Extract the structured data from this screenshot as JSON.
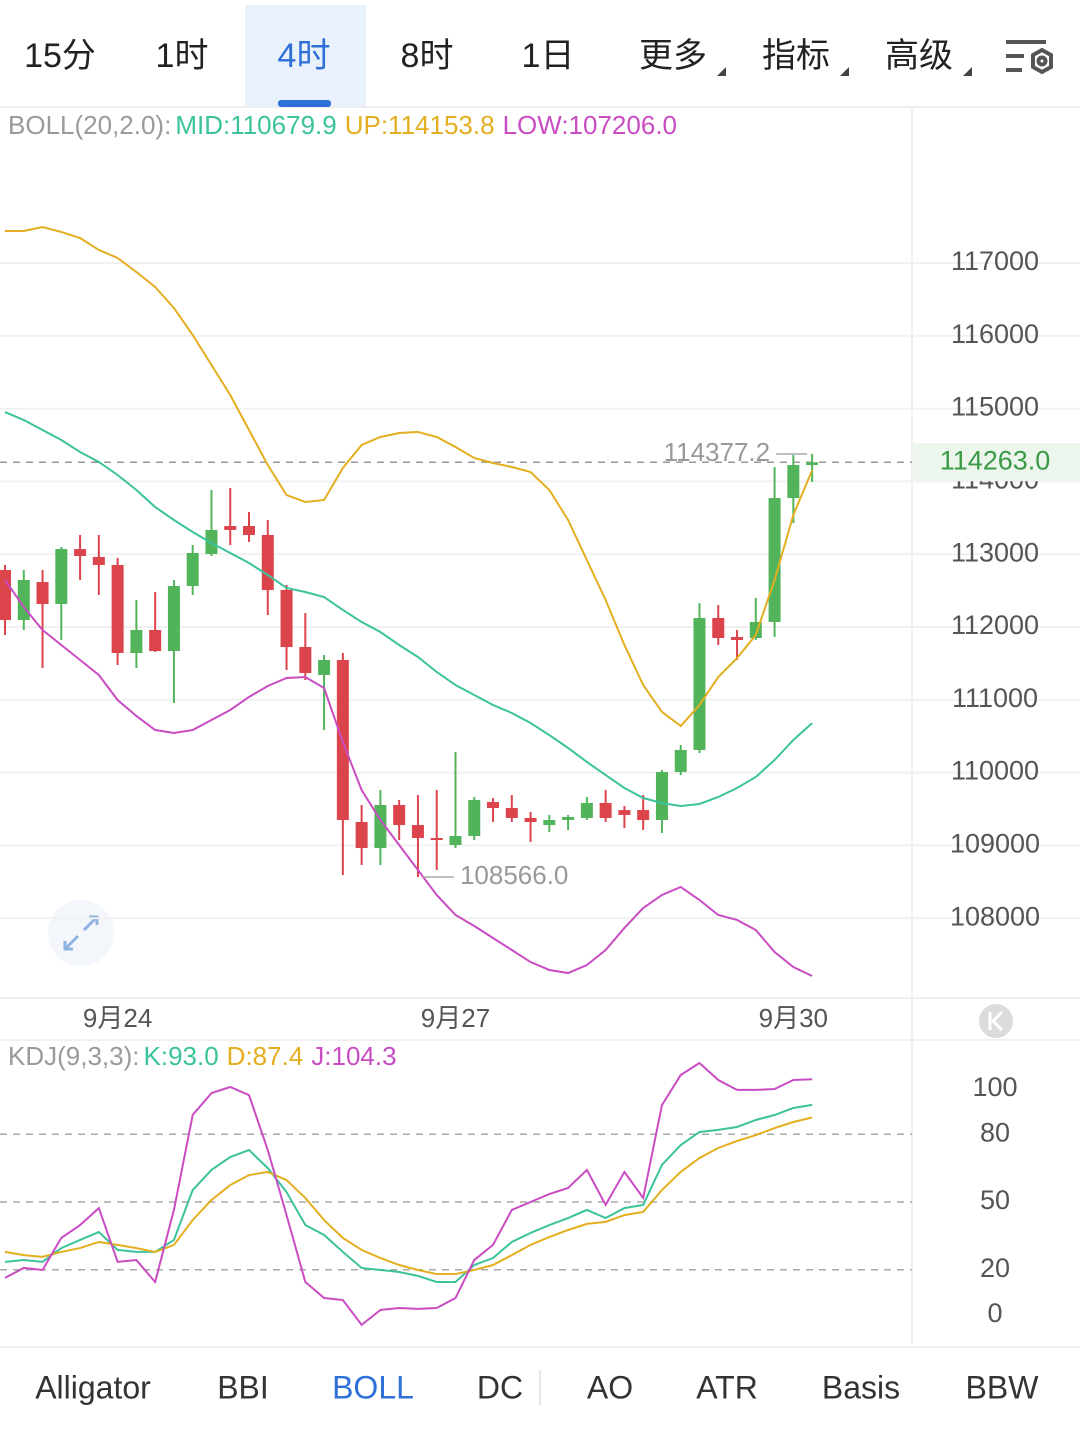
{
  "tabs": {
    "periods": [
      "15分",
      "1时",
      "4时",
      "8时",
      "1日"
    ],
    "menus": [
      "更多",
      "指标",
      "高级"
    ],
    "active": "4时"
  },
  "chart_data": [
    {
      "type": "candlestick",
      "legend_title": "BOLL(20,2.0):",
      "categories": [
        null,
        null,
        null,
        null,
        null,
        null,
        "9月24",
        null,
        null,
        null,
        null,
        null,
        null,
        null,
        null,
        null,
        null,
        null,
        null,
        null,
        null,
        null,
        null,
        null,
        "9月27",
        null,
        null,
        null,
        null,
        null,
        null,
        null,
        null,
        null,
        null,
        null,
        null,
        null,
        null,
        null,
        null,
        null,
        "9月30",
        null
      ],
      "open": [
        112783,
        112096,
        112618,
        112316,
        113071,
        112962,
        112852,
        111643,
        111959,
        111670,
        112563,
        113003,
        113387,
        113387,
        113264,
        112508,
        111725,
        111341,
        111547,
        109322,
        108964,
        109555,
        109280,
        109102,
        109006,
        109129,
        109596,
        109514,
        109377,
        109280,
        109349,
        109377,
        109583,
        109486,
        109486,
        109349,
        110008,
        110311,
        112124,
        111863,
        111849,
        112069,
        113772,
        114225
      ],
      "high": [
        112852,
        112783,
        112783,
        113099,
        113264,
        113264,
        112948,
        112371,
        112481,
        112646,
        113126,
        113882,
        113909,
        113580,
        113470,
        112577,
        112192,
        111615,
        111643,
        109555,
        109761,
        109624,
        109692,
        109761,
        110283,
        109665,
        109651,
        109692,
        109459,
        109418,
        109418,
        109665,
        109761,
        109541,
        109692,
        110036,
        110379,
        112330,
        112302,
        111959,
        112398,
        114198,
        114363,
        114377.2
      ],
      "low": [
        111890,
        111959,
        111437,
        111822,
        112646,
        112440,
        111478,
        111437,
        111657,
        110956,
        112440,
        112975,
        113126,
        113168,
        112165,
        111409,
        111272,
        110585,
        108594,
        108731,
        108731,
        109074,
        108566,
        108662,
        108964,
        109074,
        109322,
        109322,
        109047,
        109184,
        109212,
        109349,
        109322,
        109239,
        109212,
        109170,
        109967,
        110269,
        111753,
        111547,
        111822,
        111863,
        113429,
        113992
      ],
      "close": [
        112096,
        112646,
        112316,
        113071,
        112975,
        112852,
        111643,
        111959,
        111670,
        112563,
        113017,
        113333,
        113333,
        113264,
        112508,
        111725,
        111368,
        111547,
        109349,
        108964,
        109555,
        109280,
        109102,
        109074,
        109129,
        109624,
        109514,
        109377,
        109322,
        109349,
        109390,
        109583,
        109377,
        109418,
        109349,
        110008,
        110311,
        112124,
        111849,
        111822,
        112069,
        113772,
        114225,
        114263.0
      ],
      "up_color": "#52b45a",
      "down_color": "#dc444c",
      "extreme_labels": [
        "114377.2",
        "108566.0"
      ],
      "last_price_label": "114263.0",
      "series": [
        {
          "name": "MID:110679.9",
          "color": "#3cc29c",
          "values": [
            114953,
            114843,
            114706,
            114569,
            114404,
            114267,
            114088,
            113882,
            113648,
            113470,
            113305,
            113154,
            113017,
            112879,
            112714,
            112536,
            112481,
            112412,
            112234,
            112069,
            111931,
            111753,
            111588,
            111382,
            111203,
            111066,
            110929,
            110819,
            110681,
            110516,
            110338,
            110146,
            109967,
            109789,
            109651,
            109583,
            109541,
            109569,
            109665,
            109789,
            109940,
            110173,
            110448,
            110679.9
          ]
        },
        {
          "name": "UP:114153.8",
          "color": "#e3ae1f",
          "values": [
            117440,
            117440,
            117494,
            117426,
            117343,
            117179,
            117069,
            116876,
            116670,
            116382,
            116011,
            115599,
            115187,
            114706,
            114225,
            113813,
            113717,
            113745,
            114184,
            114500,
            114610,
            114665,
            114679,
            114610,
            114473,
            114322,
            114253,
            114198,
            114129,
            113882,
            113470,
            112920,
            112371,
            111753,
            111203,
            110833,
            110640,
            110929,
            111313,
            111574,
            111890,
            112646,
            113538,
            114153.8
          ]
        },
        {
          "name": "LOW:107206.0",
          "color": "#c94cc2",
          "values": [
            112646,
            112275,
            111959,
            111753,
            111547,
            111341,
            110997,
            110778,
            110585,
            110544,
            110585,
            110723,
            110860,
            111039,
            111190,
            111300,
            111313,
            111162,
            110420,
            109761,
            109349,
            109006,
            108662,
            108319,
            108044,
            107893,
            107728,
            107563,
            107398,
            107289,
            107247,
            107357,
            107563,
            107866,
            108140,
            108319,
            108429,
            108250,
            108044,
            107976,
            107838,
            107536,
            107330,
            107206.0
          ]
        }
      ],
      "ylim": [
        106904,
        119129
      ],
      "yticks": [
        108000,
        109000,
        110000,
        111000,
        112000,
        113000,
        114000,
        115000,
        116000,
        117000
      ],
      "grid": true
    },
    {
      "type": "line",
      "legend_title": "KDJ(9,3,3):",
      "series": [
        {
          "name": "K:93.0",
          "color": "#3cc29c",
          "values": [
            23.5,
            24.3,
            23.5,
            29.6,
            33.2,
            36.7,
            28.8,
            27.9,
            27.9,
            33.2,
            55.3,
            64.2,
            69.9,
            73.0,
            65.0,
            54.4,
            39.8,
            35.4,
            27.9,
            20.8,
            19.9,
            19.0,
            17.3,
            14.6,
            14.6,
            22.1,
            25.2,
            32.3,
            36.3,
            39.8,
            42.9,
            46.5,
            42.9,
            47.3,
            48.7,
            66.4,
            75.2,
            81.0,
            81.9,
            83.2,
            86.3,
            88.5,
            91.6,
            93.0
          ]
        },
        {
          "name": "D:87.4",
          "color": "#e3ae1f",
          "values": [
            27.9,
            26.5,
            25.7,
            27.9,
            29.6,
            32.3,
            31.0,
            29.6,
            27.9,
            31.0,
            42.0,
            50.9,
            57.5,
            61.9,
            63.3,
            59.7,
            51.8,
            42.0,
            34.1,
            28.8,
            25.2,
            22.1,
            19.9,
            18.1,
            18.1,
            19.9,
            22.1,
            26.5,
            31.0,
            34.5,
            37.6,
            40.3,
            41.2,
            44.2,
            45.6,
            55.3,
            63.3,
            69.5,
            73.9,
            77.0,
            79.6,
            82.7,
            85.4,
            87.4
          ]
        },
        {
          "name": "J:104.3",
          "color": "#c94cc2",
          "values": [
            16.4,
            20.8,
            19.9,
            34.1,
            39.8,
            47.3,
            23.5,
            24.3,
            14.6,
            46.5,
            88.5,
            98.2,
            100.9,
            97.3,
            73.0,
            44.2,
            14.6,
            7.5,
            6.6,
            -4.4,
            2.2,
            3.1,
            2.7,
            3.1,
            7.5,
            24.3,
            31.0,
            46.5,
            50.0,
            53.5,
            56.2,
            64.2,
            48.7,
            63.3,
            51.8,
            92.9,
            106.2,
            111.5,
            104.0,
            99.6,
            99.6,
            100.0,
            104.0,
            104.3
          ]
        }
      ],
      "ylim": [
        -13.3,
        121.7
      ],
      "yticks": [
        0,
        20,
        50,
        80,
        100
      ],
      "dashed_grid": [
        20,
        50,
        80
      ]
    }
  ],
  "indicator_tabs": {
    "items": [
      "Alligator",
      "BBI",
      "BOLL",
      "DC",
      "AO",
      "ATR",
      "Basis",
      "BBW"
    ],
    "active": "BOLL"
  }
}
